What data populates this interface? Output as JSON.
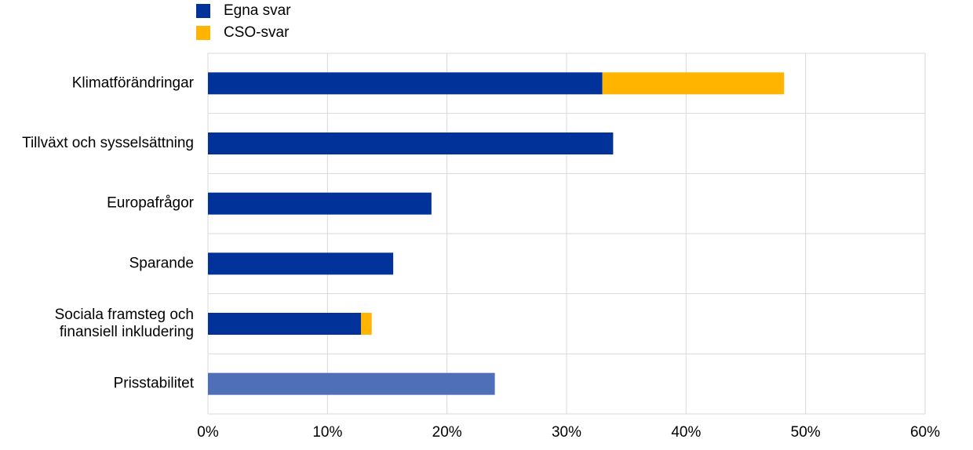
{
  "chart_data": {
    "type": "stacked-bar-horizontal",
    "categories": [
      "Klimatförändringar",
      "Tillväxt och sysselsättning",
      "Europafrågor",
      "Sparande",
      "Sociala framsteg och\nfinansiell inkludering",
      "Prisstabilitet"
    ],
    "series": [
      {
        "name": "Egna svar",
        "color": "#003299",
        "colors": [
          "#003299",
          "#003299",
          "#003299",
          "#003299",
          "#003299",
          "#4f6fb8"
        ],
        "values": [
          33,
          33.9,
          18.7,
          15.5,
          12.8,
          24
        ]
      },
      {
        "name": "CSO-svar",
        "color": "#ffb400",
        "values": [
          15.2,
          null,
          null,
          null,
          0.9,
          null
        ]
      }
    ],
    "xlim": [
      0,
      60
    ],
    "xticks": [
      {
        "value": 0,
        "label": "0%"
      },
      {
        "value": 10,
        "label": "10%"
      },
      {
        "value": 20,
        "label": "20%"
      },
      {
        "value": 30,
        "label": "30%"
      },
      {
        "value": 40,
        "label": "40%"
      },
      {
        "value": 50,
        "label": "50%"
      },
      {
        "value": 60,
        "label": "60%"
      }
    ],
    "grid": true,
    "legend": "top-left"
  }
}
